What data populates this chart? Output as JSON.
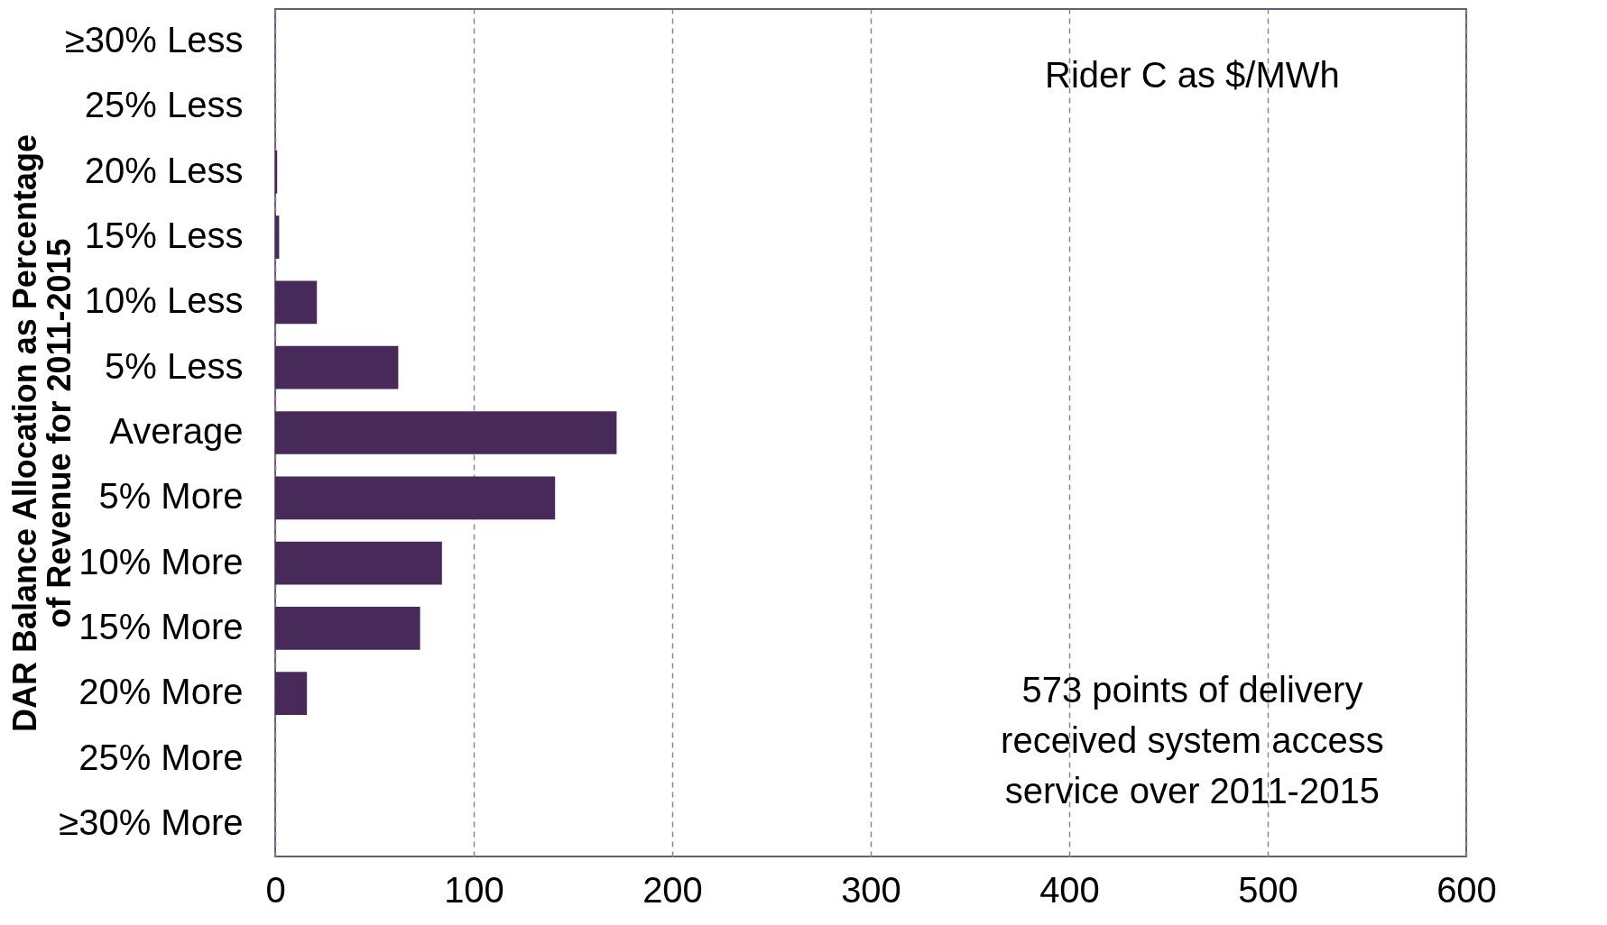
{
  "chart_data": {
    "type": "bar",
    "orientation": "horizontal",
    "ylabel": "DAR Balance Allocation as Percentage of Revenue for 2011-2015",
    "categories": [
      "≥30% Less",
      "25% Less",
      "20% Less",
      "15% Less",
      "10% Less",
      "5% Less",
      "Average",
      "5% More",
      "10% More",
      "15% More",
      "20% More",
      "25% More",
      "≥30% More"
    ],
    "values": [
      0,
      0,
      1,
      2,
      21,
      62,
      172,
      141,
      84,
      73,
      16,
      0,
      0
    ],
    "color": "#472a5a",
    "xlim": [
      0,
      600
    ],
    "xticks": [
      0,
      100,
      200,
      300,
      400,
      500,
      600
    ],
    "grid": "x",
    "annotations": [
      "Rider C as $/MWh",
      "573 points of delivery received system access service over 2011-2015"
    ]
  }
}
